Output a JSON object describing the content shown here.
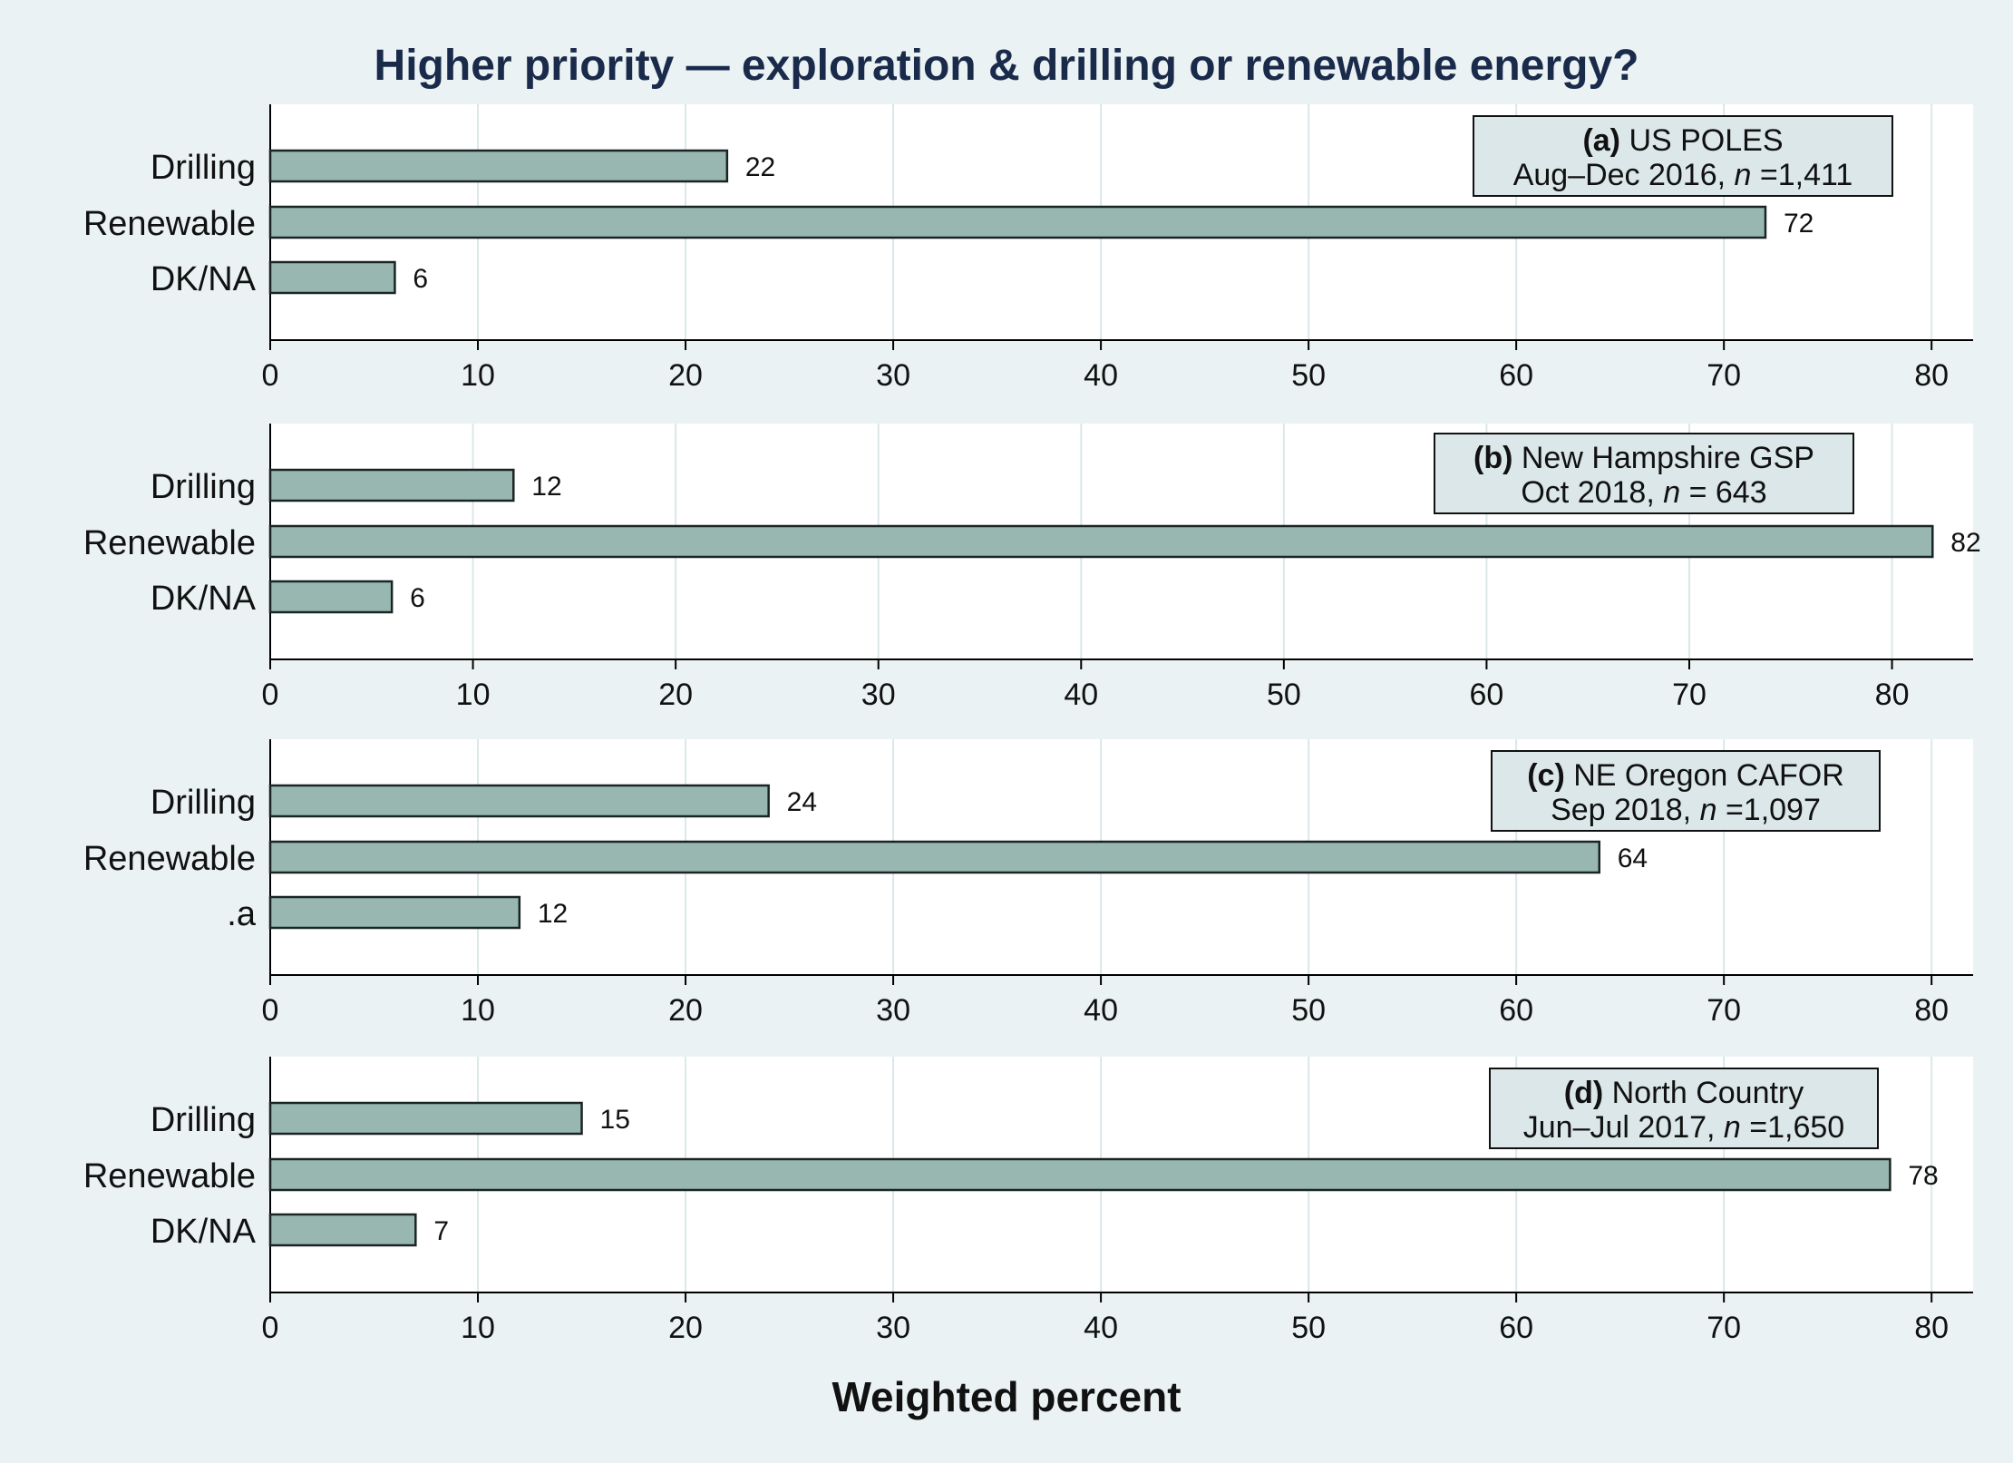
{
  "figure": {
    "title": "Higher priority — exploration & drilling or renewable energy?",
    "xlabel": "Weighted percent",
    "colors": {
      "background": "#eaf2f3",
      "plot_area": "#ffffff",
      "bar_fill": "#98b7b0",
      "bar_stroke": "#1b2424",
      "legend_fill": "#dbe7e9",
      "title": "#1a2a4a"
    }
  },
  "chart_data": [
    {
      "type": "bar",
      "orientation": "horizontal",
      "categories": [
        "Drilling",
        "Renewable",
        "DK/NA"
      ],
      "values": [
        22,
        72,
        6
      ],
      "data_labels": [
        "22",
        "72",
        "6"
      ],
      "legend": {
        "tag": "(a)",
        "name": "US POLES",
        "period": "Aug–Dec 2016,",
        "n_label": "n",
        "n_value": "=1,411"
      },
      "xlim": [
        0,
        82
      ],
      "xticks": [
        0,
        10,
        20,
        30,
        40,
        50,
        60,
        70,
        80
      ],
      "legend_position": "top-right",
      "grid": true
    },
    {
      "type": "bar",
      "orientation": "horizontal",
      "categories": [
        "Drilling",
        "Renewable",
        "DK/NA"
      ],
      "values": [
        12,
        82,
        6
      ],
      "data_labels": [
        "12",
        "82",
        "6"
      ],
      "legend": {
        "tag": "(b)",
        "name": "New Hampshire GSP",
        "period": "Oct 2018,",
        "n_label": "n",
        "n_value": "=   643"
      },
      "xlim": [
        0,
        84
      ],
      "xticks": [
        0,
        10,
        20,
        30,
        40,
        50,
        60,
        70,
        80
      ],
      "legend_position": "top-right",
      "grid": true
    },
    {
      "type": "bar",
      "orientation": "horizontal",
      "categories": [
        "Drilling",
        "Renewable",
        ".a"
      ],
      "values": [
        24,
        64,
        12
      ],
      "data_labels": [
        "24",
        "64",
        "12"
      ],
      "legend": {
        "tag": "(c)",
        "name": "NE Oregon CAFOR",
        "period": "Sep 2018,",
        "n_label": "n",
        "n_value": "=1,097"
      },
      "xlim": [
        0,
        82
      ],
      "xticks": [
        0,
        10,
        20,
        30,
        40,
        50,
        60,
        70,
        80
      ],
      "legend_position": "top-right",
      "grid": true
    },
    {
      "type": "bar",
      "orientation": "horizontal",
      "categories": [
        "Drilling",
        "Renewable",
        "DK/NA"
      ],
      "values": [
        15,
        78,
        7
      ],
      "data_labels": [
        "15",
        "78",
        "7"
      ],
      "legend": {
        "tag": "(d)",
        "name": "North Country",
        "period": "Jun–Jul 2017,",
        "n_label": "n",
        "n_value": "=1,650"
      },
      "xlim": [
        0,
        82
      ],
      "xticks": [
        0,
        10,
        20,
        30,
        40,
        50,
        60,
        70,
        80
      ],
      "legend_position": "top-right",
      "grid": true
    }
  ]
}
